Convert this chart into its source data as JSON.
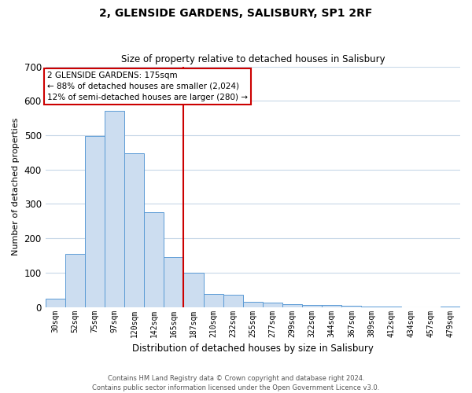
{
  "title": "2, GLENSIDE GARDENS, SALISBURY, SP1 2RF",
  "subtitle": "Size of property relative to detached houses in Salisbury",
  "xlabel": "Distribution of detached houses by size in Salisbury",
  "ylabel": "Number of detached properties",
  "categories": [
    "30sqm",
    "52sqm",
    "75sqm",
    "97sqm",
    "120sqm",
    "142sqm",
    "165sqm",
    "187sqm",
    "210sqm",
    "232sqm",
    "255sqm",
    "277sqm",
    "299sqm",
    "322sqm",
    "344sqm",
    "367sqm",
    "389sqm",
    "412sqm",
    "434sqm",
    "457sqm",
    "479sqm"
  ],
  "values": [
    25,
    155,
    497,
    570,
    448,
    275,
    145,
    100,
    38,
    35,
    15,
    12,
    8,
    5,
    5,
    3,
    2,
    1,
    0,
    0,
    2
  ],
  "bar_color_fill": "#ccddf0",
  "bar_color_edge": "#5b9bd5",
  "vline_color": "#cc0000",
  "vline_x": 6.5,
  "annotation_title": "2 GLENSIDE GARDENS: 175sqm",
  "annotation_line1": "← 88% of detached houses are smaller (2,024)",
  "annotation_line2": "12% of semi-detached houses are larger (280) →",
  "annotation_box_color": "#ffffff",
  "annotation_box_edge": "#cc0000",
  "ylim": [
    0,
    700
  ],
  "yticks": [
    0,
    100,
    200,
    300,
    400,
    500,
    600,
    700
  ],
  "background_color": "#ffffff",
  "grid_color": "#c8d8e8",
  "footer_line1": "Contains HM Land Registry data © Crown copyright and database right 2024.",
  "footer_line2": "Contains public sector information licensed under the Open Government Licence v3.0."
}
